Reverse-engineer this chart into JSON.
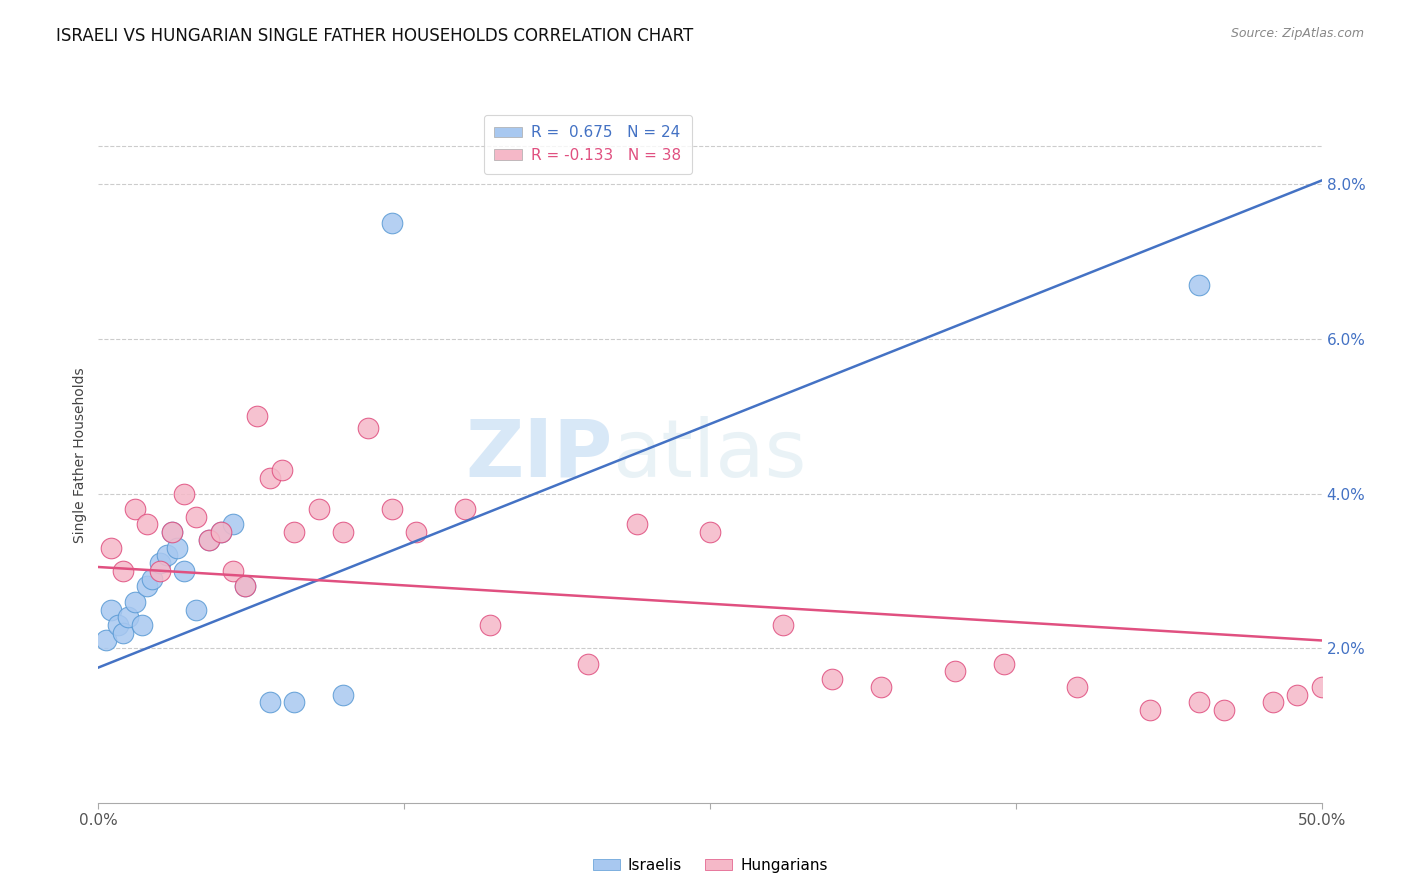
{
  "title": "ISRAELI VS HUNGARIAN SINGLE FATHER HOUSEHOLDS CORRELATION CHART",
  "source": "Source: ZipAtlas.com",
  "ylabel": "Single Father Households",
  "right_yticks": [
    2.0,
    4.0,
    6.0,
    8.0
  ],
  "watermark_zip": "ZIP",
  "watermark_atlas": "atlas",
  "legend_entries": [
    {
      "label": "R =  0.675   N = 24",
      "color": "#a8c8f0"
    },
    {
      "label": "R = -0.133   N = 38",
      "color": "#f5b8c8"
    }
  ],
  "israelis": {
    "color": "#a8c8f0",
    "edge_color": "#5b9bd5",
    "line_color": "#4472c4",
    "scatter_x": [
      0.3,
      0.5,
      0.8,
      1.0,
      1.2,
      1.5,
      1.8,
      2.0,
      2.2,
      2.5,
      2.8,
      3.0,
      3.2,
      3.5,
      4.0,
      4.5,
      5.0,
      5.5,
      6.0,
      7.0,
      8.0,
      10.0,
      12.0,
      45.0
    ],
    "scatter_y": [
      2.1,
      2.5,
      2.3,
      2.2,
      2.4,
      2.6,
      2.3,
      2.8,
      2.9,
      3.1,
      3.2,
      3.5,
      3.3,
      3.0,
      2.5,
      3.4,
      3.5,
      3.6,
      2.8,
      1.3,
      1.3,
      1.4,
      7.5,
      6.7
    ],
    "line_x0": 0.0,
    "line_y0": 1.75,
    "line_x1": 50.0,
    "line_y1": 8.05
  },
  "hungarians": {
    "color": "#f5b8c8",
    "edge_color": "#e05080",
    "line_color": "#e05080",
    "scatter_x": [
      0.5,
      1.0,
      1.5,
      2.0,
      2.5,
      3.0,
      3.5,
      4.0,
      4.5,
      5.0,
      5.5,
      6.0,
      6.5,
      7.0,
      7.5,
      8.0,
      9.0,
      10.0,
      11.0,
      12.0,
      13.0,
      15.0,
      16.0,
      20.0,
      22.0,
      25.0,
      28.0,
      30.0,
      32.0,
      35.0,
      37.0,
      40.0,
      43.0,
      45.0,
      46.0,
      48.0,
      49.0,
      50.0
    ],
    "scatter_y": [
      3.3,
      3.0,
      3.8,
      3.6,
      3.0,
      3.5,
      4.0,
      3.7,
      3.4,
      3.5,
      3.0,
      2.8,
      5.0,
      4.2,
      4.3,
      3.5,
      3.8,
      3.5,
      4.85,
      3.8,
      3.5,
      3.8,
      2.3,
      1.8,
      3.6,
      3.5,
      2.3,
      1.6,
      1.5,
      1.7,
      1.8,
      1.5,
      1.2,
      1.3,
      1.2,
      1.3,
      1.4,
      1.5
    ],
    "line_x0": 0.0,
    "line_y0": 3.05,
    "line_x1": 50.0,
    "line_y1": 2.1
  },
  "xlim": [
    0,
    50
  ],
  "ylim": [
    0.0,
    9.0
  ],
  "background_color": "#ffffff",
  "grid_color": "#cccccc",
  "axis_color": "#4472c4",
  "axis_label_color": "#555555"
}
